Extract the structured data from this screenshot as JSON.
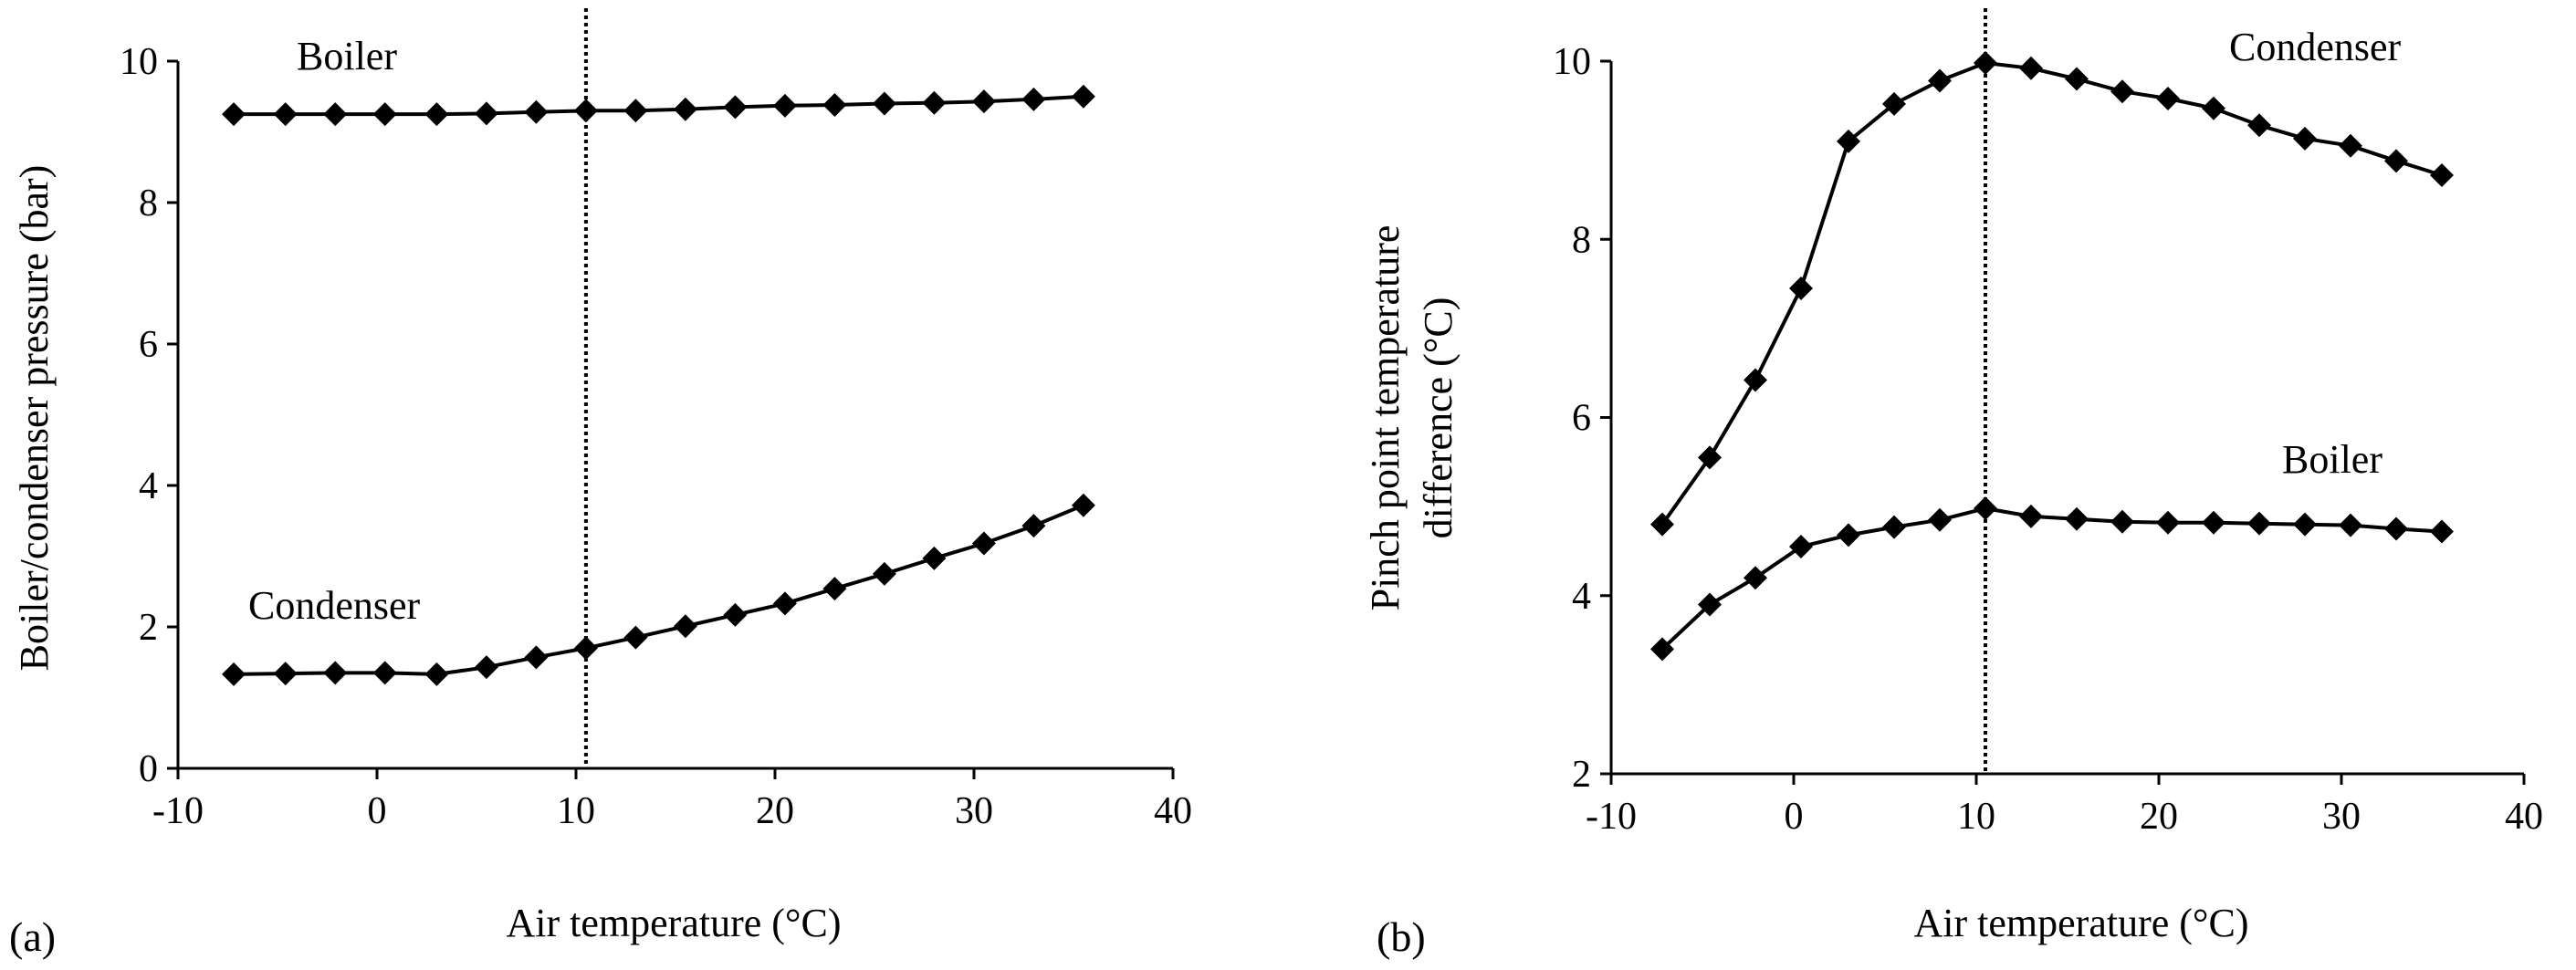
{
  "chart_data": [
    {
      "type": "line",
      "panel_label": "(a)",
      "title": "",
      "xlabel": "Air temperature (°C)",
      "ylabel": "Boiler/condenser pressure (bar)",
      "xlim": [
        -10,
        40
      ],
      "ylim": [
        0,
        10
      ],
      "xticks": [
        -10,
        0,
        10,
        20,
        30,
        40
      ],
      "xtick_labels": [
        "-10",
        "0",
        "10",
        "20",
        "30",
        "40"
      ],
      "yticks": [
        0,
        2,
        4,
        6,
        8,
        10
      ],
      "ytick_labels": [
        "0",
        "2",
        "4",
        "6",
        "8",
        "10"
      ],
      "reference_line_x": 10.5,
      "x": [
        -7.2,
        -4.6,
        -2.1,
        0.4,
        3.0,
        5.5,
        8.0,
        10.5,
        13.0,
        15.5,
        18.0,
        20.5,
        23.0,
        25.5,
        28.0,
        30.5,
        33.0,
        35.5
      ],
      "series": [
        {
          "name": "Boiler",
          "label": "Boiler",
          "values": [
            9.25,
            9.25,
            9.25,
            9.25,
            9.25,
            9.26,
            9.28,
            9.3,
            9.3,
            9.32,
            9.35,
            9.37,
            9.38,
            9.4,
            9.41,
            9.43,
            9.46,
            9.5
          ]
        },
        {
          "name": "Condenser",
          "label": "Condenser",
          "values": [
            1.33,
            1.34,
            1.35,
            1.35,
            1.33,
            1.43,
            1.57,
            1.7,
            1.85,
            2.01,
            2.17,
            2.33,
            2.54,
            2.75,
            2.97,
            3.18,
            3.43,
            3.72
          ]
        }
      ]
    },
    {
      "type": "line",
      "panel_label": "(b)",
      "title": "",
      "xlabel": "Air temperature (°C)",
      "ylabel_lines": [
        "Pinch point temperature",
        "difference (°C)"
      ],
      "xlim": [
        -10,
        40
      ],
      "ylim": [
        2,
        10
      ],
      "xticks": [
        -10,
        0,
        10,
        20,
        30,
        40
      ],
      "xtick_labels": [
        "-10",
        "0",
        "10",
        "20",
        "30",
        "40"
      ],
      "yticks": [
        2,
        4,
        6,
        8,
        10
      ],
      "ytick_labels": [
        "2",
        "4",
        "6",
        "8",
        "10"
      ],
      "reference_line_x": 10.5,
      "x": [
        -7.2,
        -4.6,
        -2.1,
        0.4,
        3.0,
        5.5,
        8.0,
        10.5,
        13.0,
        15.5,
        18.0,
        20.5,
        23.0,
        25.5,
        28.0,
        30.5,
        33.0,
        35.5
      ],
      "series": [
        {
          "name": "Condenser",
          "label": "Condenser",
          "values": [
            4.8,
            5.55,
            6.42,
            7.45,
            9.1,
            9.52,
            9.78,
            9.98,
            9.92,
            9.8,
            9.66,
            9.58,
            9.47,
            9.28,
            9.13,
            9.05,
            8.88,
            8.72
          ]
        },
        {
          "name": "Boiler",
          "label": "Boiler",
          "values": [
            3.4,
            3.9,
            4.2,
            4.55,
            4.68,
            4.77,
            4.85,
            4.98,
            4.89,
            4.86,
            4.83,
            4.82,
            4.82,
            4.81,
            4.8,
            4.79,
            4.75,
            4.72
          ]
        }
      ]
    }
  ]
}
